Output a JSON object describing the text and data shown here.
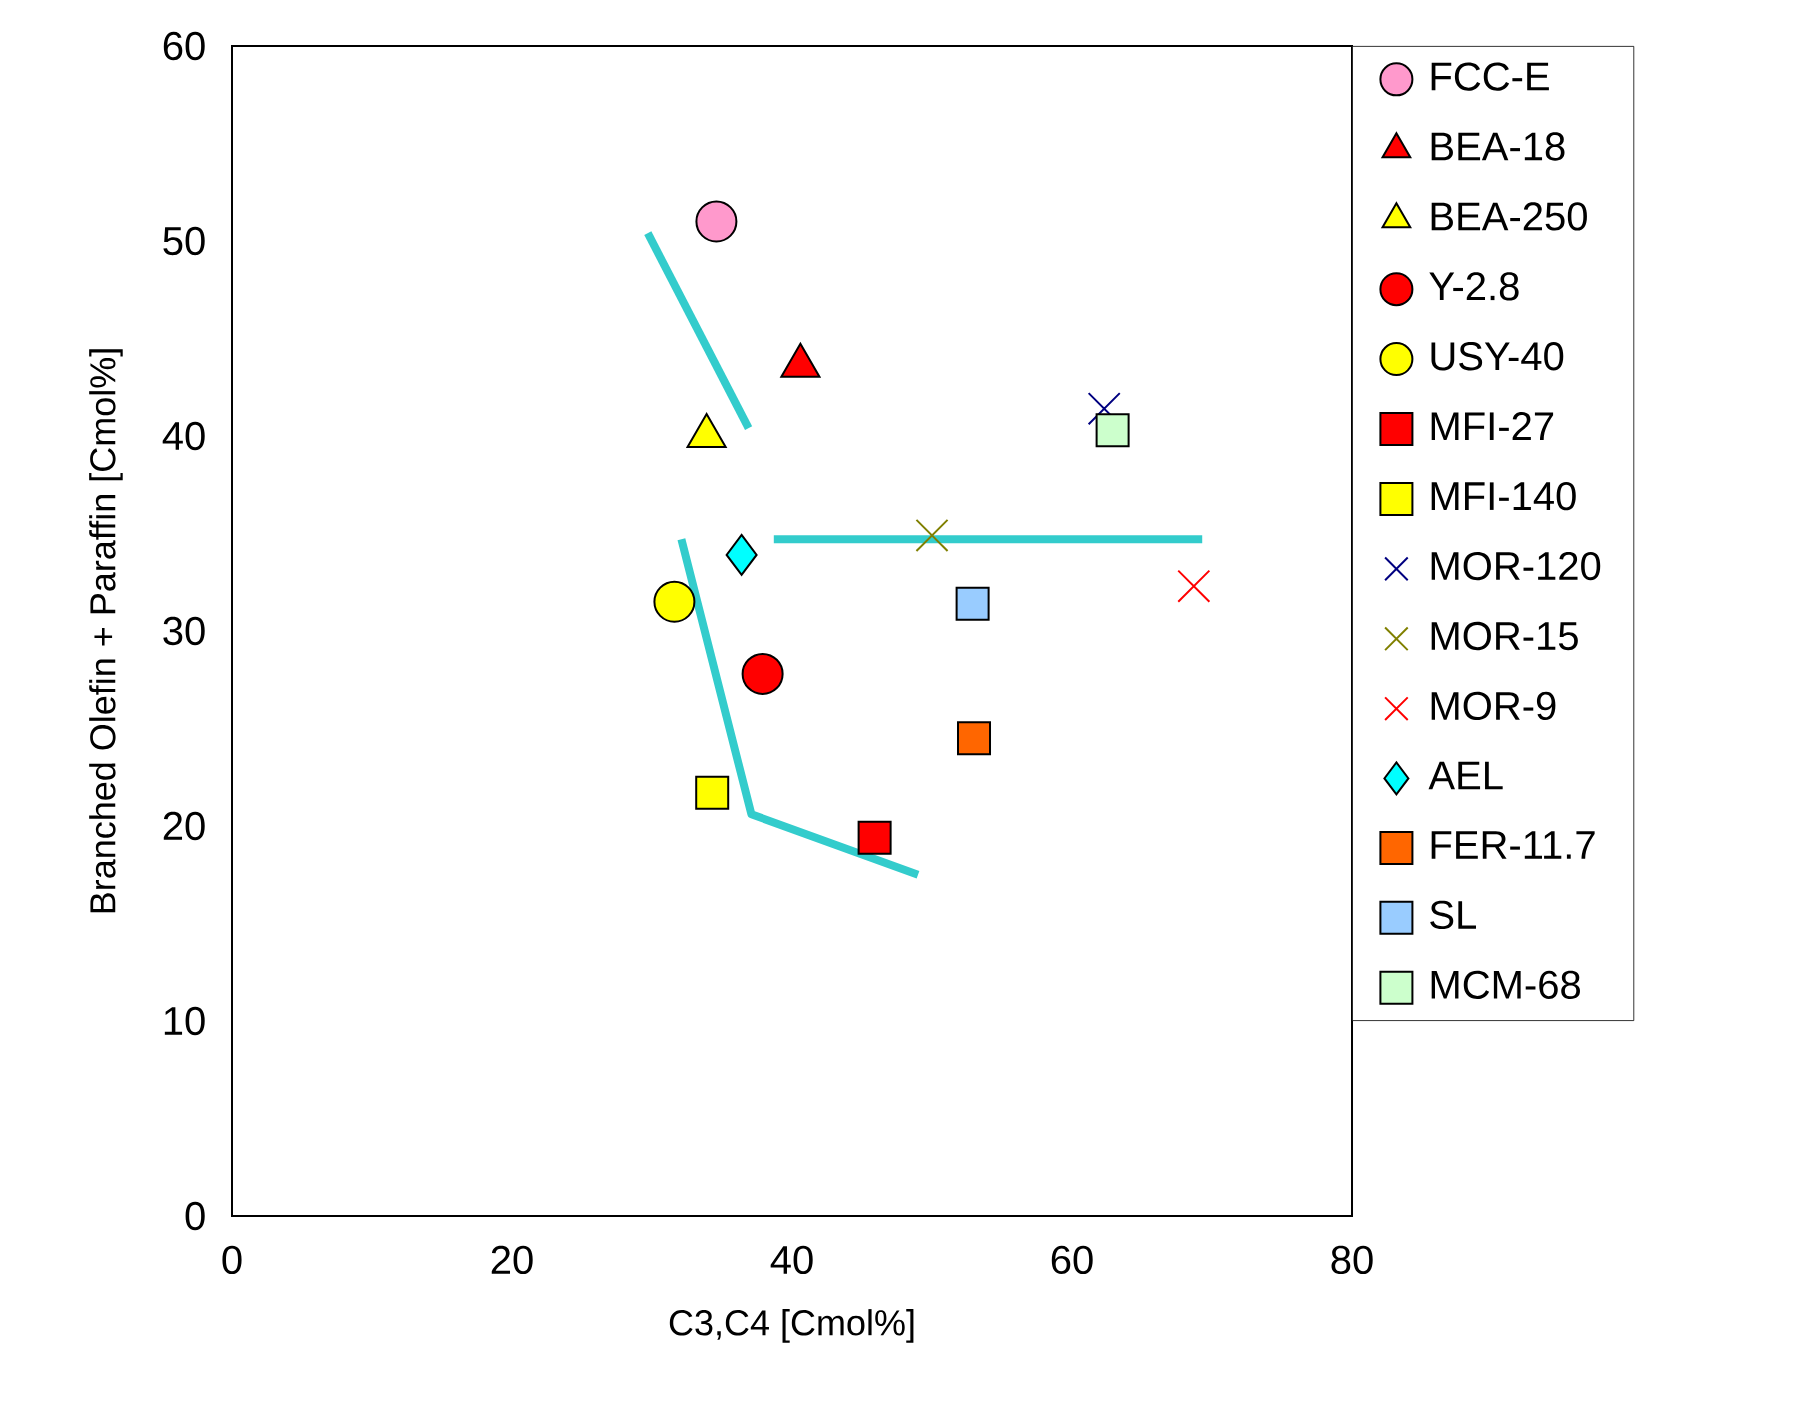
{
  "chart_data": {
    "type": "scatter",
    "xlabel": "C3,C4 [Cmol%]",
    "ylabel": "Branched Olefin + Paraffin [Cmol%]",
    "xlim": [
      0,
      80
    ],
    "xticks": [
      0,
      20,
      40,
      60,
      80
    ],
    "ylim": [
      0,
      60
    ],
    "yticks": [
      0,
      10,
      20,
      30,
      40,
      50,
      60
    ],
    "legend": "right",
    "series": [
      {
        "name": "FCC-E",
        "color": "#ff99cc",
        "marker": "circle",
        "x": [
          34.6
        ],
        "values": [
          51.0
        ]
      },
      {
        "name": "BEA-18",
        "color": "#ff0000",
        "marker": "triangle",
        "x": [
          40.6
        ],
        "values": [
          43.6
        ]
      },
      {
        "name": "BEA-250",
        "color": "#ffff00",
        "marker": "triangle",
        "x": [
          33.9
        ],
        "values": [
          40.0
        ]
      },
      {
        "name": "Y-2.8",
        "color": "#ff0000",
        "marker": "circle",
        "x": [
          37.9
        ],
        "values": [
          27.8
        ]
      },
      {
        "name": "USY-40",
        "color": "#ffff00",
        "marker": "circle",
        "x": [
          31.6
        ],
        "values": [
          31.5
        ]
      },
      {
        "name": "MFI-27",
        "color": "#ff0000",
        "marker": "square",
        "x": [
          45.9
        ],
        "values": [
          19.4
        ]
      },
      {
        "name": "MFI-140",
        "color": "#ffff00",
        "marker": "square",
        "x": [
          34.3
        ],
        "values": [
          21.7
        ]
      },
      {
        "name": "MOR-120",
        "color": "#000080",
        "marker": "cross",
        "x": [
          62.3
        ],
        "values": [
          41.4
        ]
      },
      {
        "name": "MOR-15",
        "color": "#808000",
        "marker": "cross",
        "x": [
          50.0
        ],
        "values": [
          34.9
        ]
      },
      {
        "name": "MOR-9",
        "color": "#ff0000",
        "marker": "cross",
        "x": [
          68.7
        ],
        "values": [
          32.3
        ]
      },
      {
        "name": "AEL",
        "color": "#00ffff",
        "marker": "diamond",
        "x": [
          36.4
        ],
        "values": [
          33.9
        ]
      },
      {
        "name": "FER-11.7",
        "color": "#ff6600",
        "marker": "square",
        "x": [
          53.0
        ],
        "values": [
          24.5
        ]
      },
      {
        "name": "SL",
        "color": "#99ccff",
        "marker": "square",
        "x": [
          52.9
        ],
        "values": [
          31.4
        ]
      },
      {
        "name": "MCM-68",
        "color": "#ccffcc",
        "marker": "square",
        "x": [
          62.9
        ],
        "values": [
          40.3
        ]
      },
      {
        "type": "line",
        "color": "#33cccc",
        "x": [
          29.7,
          36.9
        ],
        "values": [
          50.4,
          40.4
        ]
      },
      {
        "type": "line",
        "color": "#33cccc",
        "x": [
          38.7,
          69.3
        ],
        "values": [
          34.7,
          34.7
        ]
      },
      {
        "type": "line",
        "color": "#33cccc",
        "x": [
          32.1,
          37.1,
          49.0
        ],
        "values": [
          34.7,
          20.6,
          17.5
        ]
      }
    ]
  }
}
